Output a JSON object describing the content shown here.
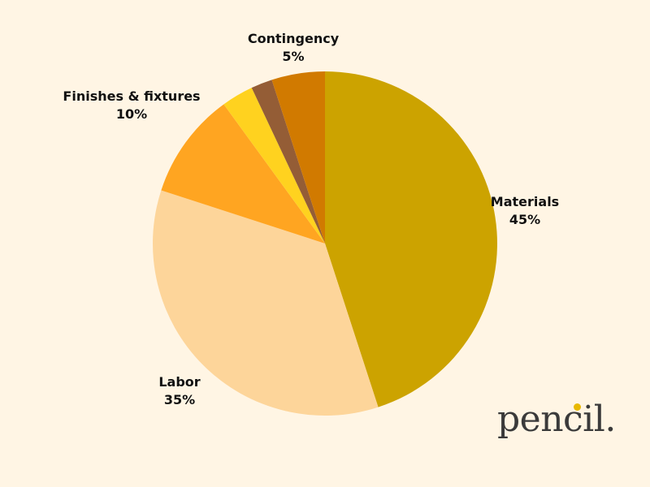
{
  "chart_data": {
    "type": "pie",
    "title": "",
    "slices": [
      {
        "label": "Materials",
        "value": 45,
        "value_label": "45%",
        "color": "#cca300"
      },
      {
        "label": "Labor",
        "value": 35,
        "value_label": "35%",
        "color": "#fdd59a"
      },
      {
        "label": "Finishes & fixtures",
        "value": 10,
        "value_label": "10%",
        "color": "#ffa521"
      },
      {
        "label": "",
        "value": 3,
        "value_label": "",
        "color": "#ffd21f"
      },
      {
        "label": "",
        "value": 2,
        "value_label": "",
        "color": "#945d36"
      },
      {
        "label": "Contingency",
        "value": 5,
        "value_label": "5%",
        "color": "#d17a00"
      }
    ],
    "start_angle_deg": 0,
    "direction": "clockwise"
  },
  "branding": {
    "logo_text": "pencil",
    "logo_period": ".",
    "logo_dot_color": "#e8b800"
  },
  "background_color": "#fff5e4"
}
